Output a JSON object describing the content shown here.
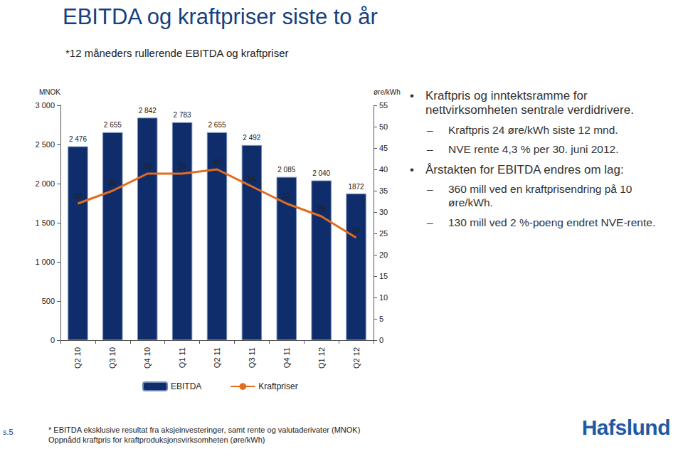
{
  "chart_data": {
    "type": "bar",
    "title": "EBITDA og kraftpriser siste to år",
    "subtitle": "*12 måneders rullerende EBITDA og kraftpriser",
    "y_label": "MNOK",
    "y2_label": "øre/kWh",
    "categories": [
      "Q2 10",
      "Q3 10",
      "Q4 10",
      "Q1 11",
      "Q2 11",
      "Q3 11",
      "Q4 11",
      "Q1 12",
      "Q2 12"
    ],
    "series": [
      {
        "name": "EBITDA",
        "type": "bar",
        "color": "#0f2d6b",
        "values": [
          2476,
          2655,
          2842,
          2783,
          2655,
          2492,
          2085,
          2040,
          1872
        ],
        "value_labels": [
          "2 476",
          "2 655",
          "2 842",
          "2 783",
          "2 655",
          "2 492",
          "2 085",
          "2 040",
          "1872"
        ]
      },
      {
        "name": "Kraftpriser",
        "type": "line",
        "axis": "y2",
        "color": "#e46c1f",
        "values": [
          32,
          35,
          39,
          39,
          40,
          36,
          32,
          29,
          24
        ]
      }
    ],
    "ylim": [
      0,
      3000
    ],
    "yticks": [
      0,
      500,
      {
        "value": 1000,
        "label": "1 000"
      },
      {
        "value": 1500,
        "label": "1 500"
      },
      {
        "value": 2000,
        "label": "2 000"
      },
      {
        "value": 2500,
        "label": "2 500"
      },
      {
        "value": 3000,
        "label": "3 000"
      }
    ],
    "y2lim": [
      0,
      55
    ],
    "y2ticks": [
      0,
      5,
      10,
      15,
      20,
      25,
      30,
      35,
      40,
      45,
      50,
      55
    ],
    "data_labels": true,
    "grid": false,
    "legend": "bottom",
    "annotations": {
      "bullets": [
        {
          "text": "Kraftpris og inntektsramme for nettvirksomheten sentrale verdidrivere.",
          "sub": [
            "Kraftpris 24 øre/kWh siste 12 mnd.",
            "NVE rente 4,3 % per 30. juni 2012."
          ]
        },
        {
          "text": "Årstakten for EBITDA endres om lag:",
          "sub": [
            "360 mill ved en kraftprisendring på 10 øre/kWh.",
            "130 mill ved 2 %-poeng endret NVE-rente."
          ]
        }
      ],
      "footnotes": [
        "* EBITDA eksklusive resultat fra aksjeinvesteringer, samt rente og valutaderivater (MNOK)",
        "Oppnådd kraftpris for kraftproduksjonsvirksomheten (øre/kWh)"
      ],
      "page": "s.5",
      "logo": "Hafslund"
    }
  }
}
